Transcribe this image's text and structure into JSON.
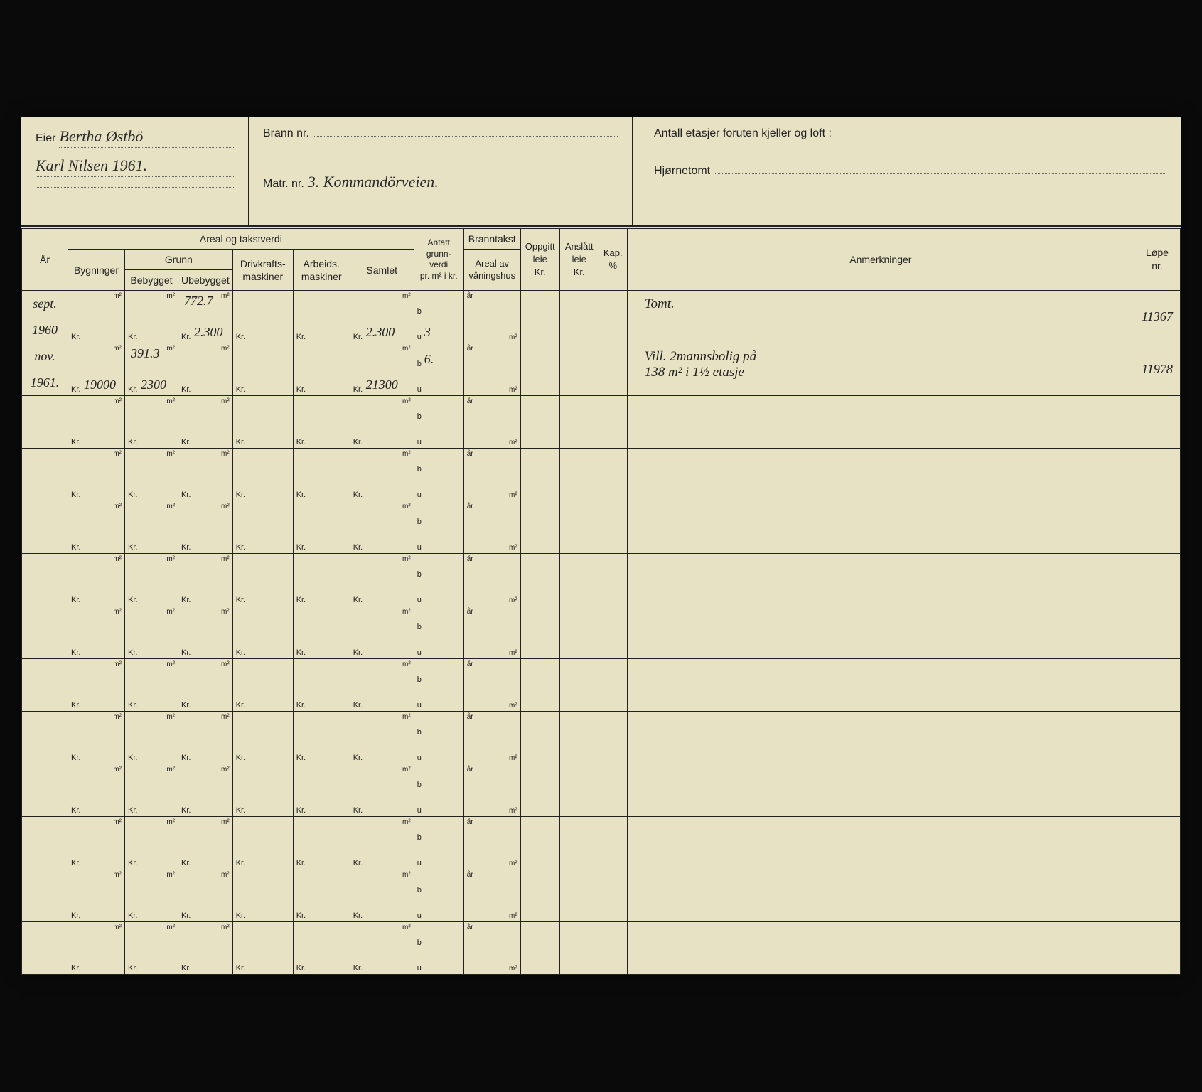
{
  "header": {
    "eier_label": "Eier",
    "eier_value_1": "Bertha Østbö",
    "eier_value_2": "Karl Nilsen   1961.",
    "brann_label": "Brann nr.",
    "brann_value": "",
    "matr_label": "Matr. nr.",
    "matr_value": "3. Kommandörveien.",
    "etasjer_label": "Antall etasjer foruten kjeller og loft :",
    "etasjer_value": "",
    "hjorne_label": "Hjørnetomt",
    "hjorne_value": ""
  },
  "columns": {
    "ar": "År",
    "areal_takst": "Areal og takstverdi",
    "bygninger": "Bygninger",
    "grunn": "Grunn",
    "bebygget": "Bebygget",
    "ubebygget": "Ubebygget",
    "drivkraft": "Drivkrafts-\nmaskiner",
    "arbeids": "Arbeids.\nmaskiner",
    "samlet": "Samlet",
    "antatt": "Antatt\ngrunn-\nverdi\npr. m² i kr.",
    "branntakst": "Branntakst",
    "areal_av": "Areal av\nvåningshus",
    "oppgitt": "Oppgitt\nleie\nKr.",
    "anslatt": "Anslått\nleie\nKr.",
    "kap": "Kap.\n%",
    "anmerkninger": "Anmerkninger",
    "lope": "Løpe\nnr."
  },
  "units": {
    "m2": "m²",
    "kr": "Kr.",
    "b": "b",
    "u": "u",
    "ar": "år"
  },
  "rows": [
    {
      "ar_top": "sept.",
      "ar_bot": "1960",
      "bygn_m2": "",
      "bygn_kr": "",
      "beb_m2": "",
      "beb_kr": "",
      "ubeb_m2": "772.7",
      "ubeb_kr": "2.300",
      "driv_kr": "",
      "arb_kr": "",
      "samlet_m2": "",
      "samlet_kr": "2.300",
      "antatt_b": "",
      "antatt_u": "3",
      "brannt_ar": "",
      "brannt_m2": "",
      "oppg": "",
      "ansl": "",
      "kap": "",
      "anm": "Tomt.",
      "lope": "11367"
    },
    {
      "ar_top": "nov.",
      "ar_bot": "1961.",
      "bygn_m2": "",
      "bygn_kr": "19000",
      "beb_m2": "391.3",
      "beb_kr": "2300",
      "ubeb_m2": "",
      "ubeb_kr": "",
      "driv_kr": "",
      "arb_kr": "",
      "samlet_m2": "",
      "samlet_kr": "21300",
      "antatt_b": "6.",
      "antatt_u": "",
      "brannt_ar": "",
      "brannt_m2": "",
      "oppg": "",
      "ansl": "",
      "kap": "",
      "anm": "Vill. 2mannsbolig på\n138 m² i 1½ etasje",
      "lope": "11978"
    }
  ],
  "empty_rows": 11,
  "style": {
    "paper_color": "#e8e2c4",
    "line_color": "#222222",
    "handwriting_color": "#2a2a2a",
    "background": "#0a0a0a",
    "printed_font": "Arial",
    "handwritten_font": "Brush Script MT",
    "printed_fontsize": 14,
    "handwritten_fontsize": 20
  }
}
